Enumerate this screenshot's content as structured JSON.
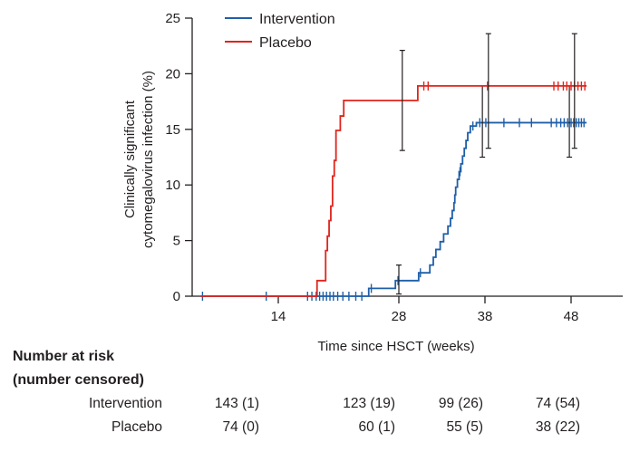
{
  "chart_data": {
    "type": "line",
    "subtype": "kaplan-meier-cumulative-incidence",
    "ylabel_lines": [
      "Clinically significant",
      "cytomegalovirus infection (%)"
    ],
    "xlabel": "Time since HSCT (weeks)",
    "xlim": [
      4,
      54
    ],
    "ylim": [
      0,
      25
    ],
    "xticks": [
      14,
      28,
      38,
      48
    ],
    "yticks": [
      0,
      5,
      10,
      15,
      20,
      25
    ],
    "legend_position": "top-left",
    "series": [
      {
        "name": "Intervention",
        "color": "#1f5fa8",
        "steps": [
          [
            5,
            0
          ],
          [
            24.5,
            0.7
          ],
          [
            27.6,
            1.4
          ],
          [
            30.3,
            2.1
          ],
          [
            31.6,
            2.8
          ],
          [
            32.0,
            3.5
          ],
          [
            32.3,
            4.2
          ],
          [
            32.8,
            4.9
          ],
          [
            33.2,
            5.6
          ],
          [
            33.7,
            6.3
          ],
          [
            34.0,
            7.0
          ],
          [
            34.2,
            7.7
          ],
          [
            34.4,
            8.4
          ],
          [
            34.5,
            9.1
          ],
          [
            34.6,
            9.8
          ],
          [
            34.8,
            10.5
          ],
          [
            35.0,
            11.2
          ],
          [
            35.2,
            11.9
          ],
          [
            35.4,
            12.6
          ],
          [
            35.6,
            13.3
          ],
          [
            35.8,
            14.0
          ],
          [
            36.0,
            14.7
          ],
          [
            36.3,
            15.3
          ],
          [
            37.0,
            15.6
          ],
          [
            49.8,
            15.6
          ]
        ],
        "censor_times": [
          5.2,
          12.6,
          17.4,
          17.9,
          18.4,
          18.8,
          19.2,
          19.6,
          20.0,
          20.4,
          20.9,
          21.5,
          22.2,
          23.0,
          23.7,
          24.8,
          27.9,
          30.5,
          35.1,
          36.6,
          37.4,
          38.1,
          40.2,
          42.0,
          43.4,
          45.7,
          46.3,
          46.8,
          47.2,
          47.6,
          48.0,
          48.3,
          48.6,
          48.9,
          49.2,
          49.5
        ],
        "ci": [
          {
            "x": 28,
            "low": 0.2,
            "high": 2.8
          },
          {
            "x": 37.7,
            "low": 12.5,
            "high": 18.9
          },
          {
            "x": 47.8,
            "low": 12.5,
            "high": 18.9
          }
        ]
      },
      {
        "name": "Placebo",
        "color": "#e0241c",
        "steps": [
          [
            5,
            0
          ],
          [
            18.5,
            1.4
          ],
          [
            19.5,
            4.1
          ],
          [
            19.7,
            5.4
          ],
          [
            19.9,
            6.8
          ],
          [
            20.1,
            8.1
          ],
          [
            20.3,
            10.8
          ],
          [
            20.5,
            12.2
          ],
          [
            20.7,
            14.9
          ],
          [
            21.2,
            16.2
          ],
          [
            21.6,
            17.6
          ],
          [
            30.2,
            18.9
          ],
          [
            49.8,
            18.9
          ]
        ],
        "censor_times": [
          30.9,
          31.4,
          38.3,
          46.0,
          46.5,
          47.1,
          47.5,
          48.0,
          48.4,
          48.8,
          49.2,
          49.6
        ],
        "ci": [
          {
            "x": 28.4,
            "low": 13.1,
            "high": 22.1
          },
          {
            "x": 38.4,
            "low": 13.3,
            "high": 23.6
          },
          {
            "x": 48.4,
            "low": 13.3,
            "high": 23.6
          }
        ]
      }
    ]
  },
  "risk_table": {
    "title_line1": "Number at risk",
    "title_line2": "(number censored)",
    "rows": [
      {
        "name": "Intervention",
        "values": [
          "143 (1)",
          "123 (19)",
          "99 (26)",
          "74 (54)"
        ]
      },
      {
        "name": "Placebo",
        "values": [
          "74 (0)",
          "60 (1)",
          "55 (5)",
          "38 (22)"
        ]
      }
    ]
  }
}
